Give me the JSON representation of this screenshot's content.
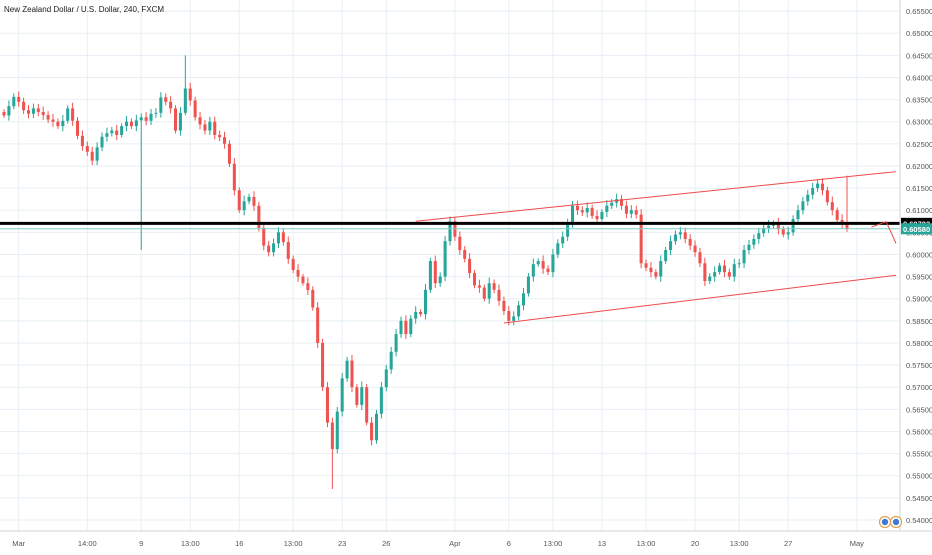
{
  "header": {
    "title": "New Zealand Dollar / U.S. Dollar, 240, FXCM"
  },
  "colors": {
    "bull": "#26a69a",
    "bear": "#ef5350",
    "grid": "#e8eff4",
    "channel": "#ef4a4a",
    "level_line": "#000000",
    "level_label_bg": "#000000",
    "price_label_bg": "#26a69a",
    "secondary_line": "#80cbc4"
  },
  "chart_data": {
    "type": "candlestick",
    "symbol": "New Zealand Dollar / U.S. Dollar",
    "interval": "240",
    "source": "FXCM",
    "ylim": [
      0.5375,
      0.6575
    ],
    "y_ticks": [
      "0.65500",
      "0.65000",
      "0.64500",
      "0.64000",
      "0.63500",
      "0.63000",
      "0.62500",
      "0.62000",
      "0.61500",
      "0.61000",
      "0.60500",
      "0.60000",
      "0.59500",
      "0.59000",
      "0.58500",
      "0.58000",
      "0.57500",
      "0.57000",
      "0.56500",
      "0.56000",
      "0.55500",
      "0.55000",
      "0.54500",
      "0.54000"
    ],
    "x_ticks": [
      {
        "label": "Mar",
        "t": 3
      },
      {
        "label": "14:00",
        "t": 17
      },
      {
        "label": "9",
        "t": 28
      },
      {
        "label": "13:00",
        "t": 38
      },
      {
        "label": "16",
        "t": 48
      },
      {
        "label": "13:00",
        "t": 59
      },
      {
        "label": "23",
        "t": 69
      },
      {
        "label": "26",
        "t": 78
      },
      {
        "label": "Apr",
        "t": 92
      },
      {
        "label": "6",
        "t": 103
      },
      {
        "label": "13:00",
        "t": 112
      },
      {
        "label": "13",
        "t": 122
      },
      {
        "label": "13:00",
        "t": 131
      },
      {
        "label": "20",
        "t": 141
      },
      {
        "label": "13:00",
        "t": 150
      },
      {
        "label": "27",
        "t": 160
      },
      {
        "label": "May",
        "t": 174
      }
    ],
    "price_labels": [
      {
        "value": 0.60703,
        "text": "0.60703",
        "kind": "level"
      },
      {
        "value": 0.6058,
        "text": "0.60580",
        "kind": "last"
      }
    ],
    "horizontal_level": 0.60703,
    "secondary_level": 0.6058,
    "channel": {
      "upper": {
        "t1": 84,
        "v1": 0.6075,
        "t2": 182,
        "v2": 0.6187
      },
      "lower": {
        "t1": 102,
        "v1": 0.5845,
        "t2": 182,
        "v2": 0.5953
      }
    },
    "projection": [
      {
        "t": 177,
        "v": 0.6062
      },
      {
        "t": 180,
        "v": 0.6074
      },
      {
        "t": 182,
        "v": 0.6025
      }
    ],
    "t_range": [
      0,
      182
    ],
    "closes": [
      0.6314,
      0.6335,
      0.6356,
      0.6345,
      0.6326,
      0.6318,
      0.633,
      0.6322,
      0.6315,
      0.6305,
      0.63,
      0.629,
      0.6302,
      0.633,
      0.6302,
      0.6268,
      0.6245,
      0.6232,
      0.6212,
      0.6242,
      0.6266,
      0.6274,
      0.628,
      0.627,
      0.629,
      0.63,
      0.629,
      0.6303,
      0.631,
      0.6302,
      0.6318,
      0.632,
      0.6355,
      0.6345,
      0.633,
      0.628,
      0.632,
      0.6375,
      0.6348,
      0.631,
      0.6294,
      0.628,
      0.63,
      0.627,
      0.6265,
      0.625,
      0.6205,
      0.6145,
      0.61,
      0.612,
      0.613,
      0.611,
      0.606,
      0.602,
      0.6005,
      0.6025,
      0.605,
      0.6028,
      0.599,
      0.5965,
      0.595,
      0.5935,
      0.592,
      0.588,
      0.58,
      0.57,
      0.562,
      0.556,
      0.5645,
      0.572,
      0.576,
      0.57,
      0.566,
      0.57,
      0.562,
      0.558,
      0.564,
      0.57,
      0.574,
      0.578,
      0.582,
      0.585,
      0.582,
      0.5855,
      0.587,
      0.5865,
      0.592,
      0.5985,
      0.5935,
      0.595,
      0.603,
      0.6075,
      0.604,
      0.601,
      0.599,
      0.5958,
      0.593,
      0.5925,
      0.59,
      0.5935,
      0.592,
      0.5895,
      0.5872,
      0.585,
      0.586,
      0.5885,
      0.5912,
      0.595,
      0.5978,
      0.5985,
      0.5968,
      0.596,
      0.6,
      0.6025,
      0.604,
      0.607,
      0.611,
      0.61,
      0.6095,
      0.6105,
      0.6087,
      0.608,
      0.6096,
      0.611,
      0.6117,
      0.6125,
      0.611,
      0.6092,
      0.61,
      0.609,
      0.598,
      0.597,
      0.596,
      0.595,
      0.5985,
      0.601,
      0.603,
      0.6045,
      0.605,
      0.6035,
      0.602,
      0.6005,
      0.598,
      0.594,
      0.595,
      0.596,
      0.5975,
      0.596,
      0.595,
      0.5978,
      0.598,
      0.601,
      0.6022,
      0.6035,
      0.6048,
      0.606,
      0.6065,
      0.607,
      0.6057,
      0.6045,
      0.605,
      0.608,
      0.61,
      0.612,
      0.6135,
      0.615,
      0.616,
      0.6145,
      0.6118,
      0.61,
      0.6078,
      0.607,
      0.6058
    ]
  }
}
